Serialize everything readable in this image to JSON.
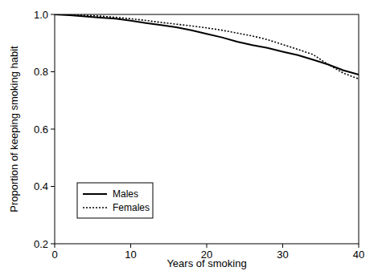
{
  "chart_data": {
    "type": "line",
    "xlabel": "Years of smoking",
    "ylabel": "Proportion of keeping smoking habit",
    "x": [
      0,
      2,
      4,
      6,
      8,
      10,
      12,
      14,
      16,
      18,
      20,
      22,
      24,
      26,
      28,
      30,
      32,
      34,
      36,
      38,
      40
    ],
    "series": [
      {
        "name": "Males",
        "color": "#000000",
        "line_style": "solid",
        "values": [
          1.0,
          0.997,
          0.993,
          0.989,
          0.985,
          0.978,
          0.97,
          0.963,
          0.955,
          0.945,
          0.932,
          0.92,
          0.905,
          0.893,
          0.883,
          0.87,
          0.858,
          0.842,
          0.825,
          0.805,
          0.79
        ]
      },
      {
        "name": "Females",
        "color": "#000000",
        "line_style": "dotted",
        "values": [
          1.0,
          0.999,
          0.997,
          0.994,
          0.99,
          0.985,
          0.979,
          0.972,
          0.966,
          0.96,
          0.953,
          0.945,
          0.935,
          0.925,
          0.912,
          0.895,
          0.878,
          0.86,
          0.825,
          0.795,
          0.775
        ]
      }
    ],
    "xlim": [
      0,
      40
    ],
    "xticks": [
      0,
      10,
      20,
      30,
      40
    ],
    "ylim": [
      0.2,
      1.0
    ],
    "yticks": [
      0.2,
      0.4,
      0.6,
      0.8,
      {
        "value": 1,
        "label": "1.0"
      }
    ],
    "grid": false,
    "legend": "lower left"
  }
}
